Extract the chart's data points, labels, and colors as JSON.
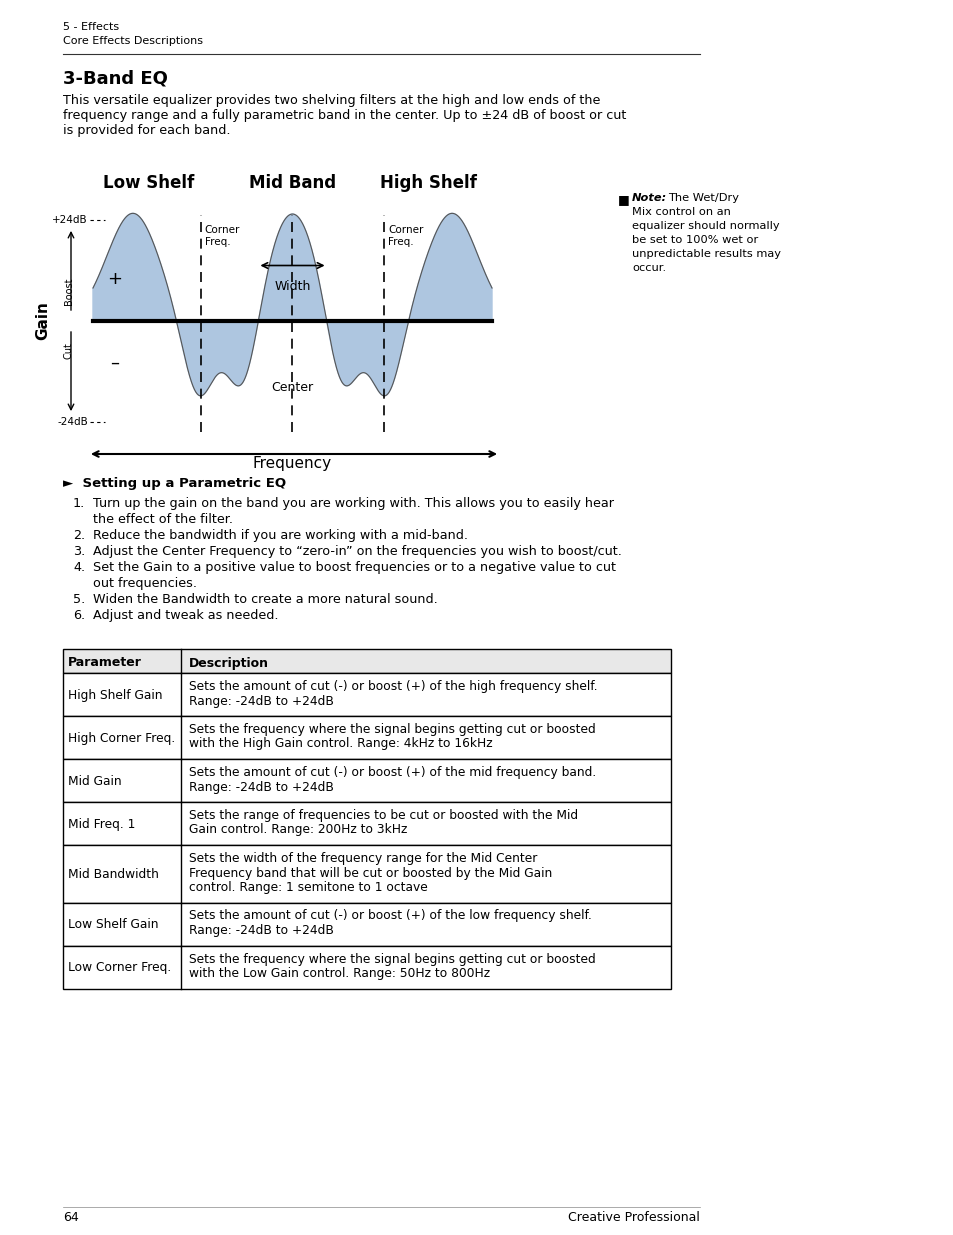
{
  "page_header_line1": "5 - Effects",
  "page_header_line2": "Core Effects Descriptions",
  "section_title": "3-Band EQ",
  "intro_text_lines": [
    "This versatile equalizer provides two shelving filters at the high and low ends of the",
    "frequency range and a fully parametric band in the center. Up to ±24 dB of boost or cut",
    "is provided for each band."
  ],
  "diagram_labels": {
    "low_shelf": "Low Shelf",
    "mid_band": "Mid Band",
    "high_shelf": "High Shelf",
    "corner_freq1": "Corner\nFreq.",
    "corner_freq2": "Corner\nFreq.",
    "plus24": "+24dB",
    "minus24": "-24dB",
    "gain": "Gain",
    "boost": "Boost",
    "cut": "Cut",
    "plus": "+",
    "minus": "–",
    "width": "Width",
    "center": "Center",
    "frequency": "Frequency"
  },
  "diagram_color": "#aec6e0",
  "diagram_line_color": "#000000",
  "note_bullet": "■",
  "note_title": "Note:",
  "note_lines": [
    "The Wet/Dry",
    "Mix control on an",
    "equalizer should normally",
    "be set to 100% wet or",
    "unpredictable results may",
    "occur."
  ],
  "subsection_title": "►  Setting up a Parametric EQ",
  "steps": [
    [
      "1.",
      "Turn up the gain on the band you are working with. This allows you to easily hear"
    ],
    [
      "",
      "the effect of the filter."
    ],
    [
      "2.",
      "Reduce the bandwidth if you are working with a mid-band."
    ],
    [
      "3.",
      "Adjust the Center Frequency to “zero-in” on the frequencies you wish to boost/cut."
    ],
    [
      "4.",
      "Set the Gain to a positive value to boost frequencies or to a negative value to cut"
    ],
    [
      "",
      "out frequencies."
    ],
    [
      "5.",
      "Widen the Bandwidth to create a more natural sound."
    ],
    [
      "6.",
      "Adjust and tweak as needed."
    ]
  ],
  "table_headers": [
    "Parameter",
    "Description"
  ],
  "table_rows": [
    [
      "High Shelf Gain",
      "Sets the amount of cut (-) or boost (+) of the high frequency shelf.",
      "Range: -24dB to +24dB"
    ],
    [
      "High Corner Freq.",
      "Sets the frequency where the signal begins getting cut or boosted",
      "with the High Gain control. Range: 4kHz to 16kHz"
    ],
    [
      "Mid Gain",
      "Sets the amount of cut (-) or boost (+) of the mid frequency band.",
      "Range: -24dB to +24dB"
    ],
    [
      "Mid Freq. 1",
      "Sets the range of frequencies to be cut or boosted with the Mid",
      "Gain control. Range: 200Hz to 3kHz"
    ],
    [
      "Mid Bandwidth",
      "Sets the width of the frequency range for the Mid Center",
      "Frequency band that will be cut or boosted by the Mid Gain",
      "control. Range: 1 semitone to 1 octave"
    ],
    [
      "Low Shelf Gain",
      "Sets the amount of cut (-) or boost (+) of the low frequency shelf.",
      "Range: -24dB to +24dB"
    ],
    [
      "Low Corner Freq.",
      "Sets the frequency where the signal begins getting cut or boosted",
      "with the Low Gain control. Range: 50Hz to 800Hz"
    ]
  ],
  "page_number": "64",
  "page_footer": "Creative Professional",
  "bg_color": "#ffffff",
  "text_color": "#000000"
}
